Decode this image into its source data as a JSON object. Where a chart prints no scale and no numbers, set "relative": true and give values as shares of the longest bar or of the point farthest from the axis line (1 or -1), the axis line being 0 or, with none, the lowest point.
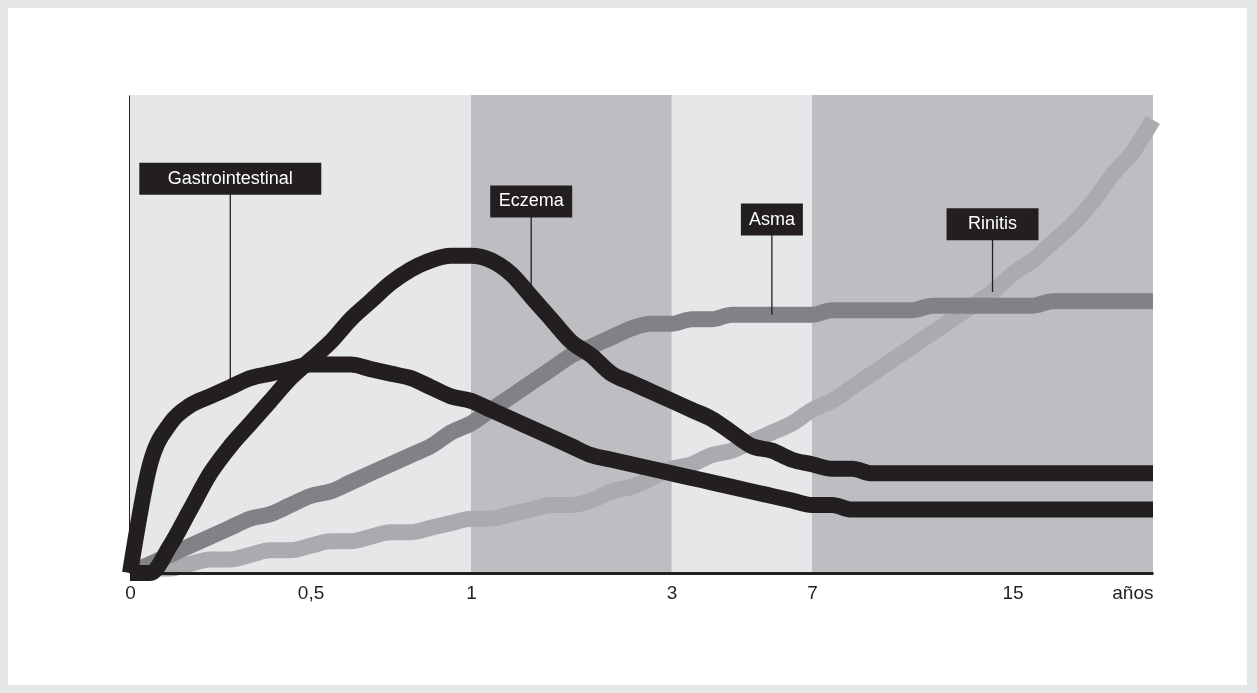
{
  "chart_data": {
    "type": "line",
    "relative": true,
    "xlabel": "años",
    "categories": [
      "0",
      null,
      null,
      null,
      null,
      null,
      null,
      null,
      null,
      "0,5",
      null,
      null,
      null,
      null,
      null,
      null,
      null,
      "1",
      null,
      null,
      null,
      null,
      null,
      null,
      null,
      null,
      null,
      "3",
      null,
      null,
      null,
      null,
      null,
      null,
      "7",
      null,
      null,
      null,
      null,
      null,
      null,
      null,
      null,
      null,
      "15",
      null,
      null,
      null,
      null,
      null,
      null,
      null
    ],
    "bands": [
      {
        "axis": "x",
        "from": "0",
        "to": "1",
        "color": "#e6e7e8"
      },
      {
        "axis": "x",
        "from": "3",
        "to": "7",
        "color": "#e6e7e8"
      }
    ],
    "series": [
      {
        "name": "Gastrointestinal",
        "color": "#231f20",
        "values": [
          0,
          0.24,
          0.33,
          0.37,
          0.39,
          0.41,
          0.43,
          0.44,
          0.45,
          0.46,
          0.46,
          0.46,
          0.45,
          0.44,
          0.43,
          0.41,
          0.39,
          0.38,
          0.36,
          0.34,
          0.32,
          0.3,
          0.28,
          0.26,
          0.25,
          0.24,
          0.23,
          0.22,
          0.21,
          0.2,
          0.19,
          0.18,
          0.17,
          0.16,
          0.15,
          0.15,
          0.14,
          0.14,
          0.14,
          0.14,
          0.14,
          0.14,
          0.14,
          0.14,
          0.14,
          0.14,
          0.14,
          0.14,
          0.14,
          0.14,
          0.14,
          0.14
        ]
      },
      {
        "name": "Eczema",
        "color": "#231f20",
        "values": [
          0,
          0,
          0.06,
          0.14,
          0.22,
          0.28,
          0.33,
          0.38,
          0.43,
          0.47,
          0.51,
          0.56,
          0.6,
          0.64,
          0.67,
          0.69,
          0.7,
          0.7,
          0.69,
          0.66,
          0.61,
          0.56,
          0.51,
          0.48,
          0.44,
          0.42,
          0.4,
          0.38,
          0.36,
          0.34,
          0.31,
          0.28,
          0.27,
          0.25,
          0.24,
          0.23,
          0.23,
          0.22,
          0.22,
          0.22,
          0.22,
          0.22,
          0.22,
          0.22,
          0.22,
          0.22,
          0.22,
          0.22,
          0.22,
          0.22,
          0.22,
          0.22
        ]
      },
      {
        "name": "Asma",
        "color": "#808285",
        "values": [
          0,
          0.02,
          0.04,
          0.06,
          0.08,
          0.1,
          0.12,
          0.13,
          0.15,
          0.17,
          0.18,
          0.2,
          0.22,
          0.24,
          0.26,
          0.28,
          0.31,
          0.33,
          0.36,
          0.39,
          0.42,
          0.45,
          0.48,
          0.5,
          0.52,
          0.54,
          0.55,
          0.55,
          0.56,
          0.56,
          0.57,
          0.57,
          0.57,
          0.57,
          0.57,
          0.58,
          0.58,
          0.58,
          0.58,
          0.58,
          0.59,
          0.59,
          0.59,
          0.59,
          0.59,
          0.59,
          0.6,
          0.6,
          0.6,
          0.6,
          0.6,
          0.6
        ]
      },
      {
        "name": "Rinitis",
        "color": "#a9abae",
        "values": [
          0,
          0.01,
          0.01,
          0.02,
          0.03,
          0.03,
          0.04,
          0.05,
          0.05,
          0.06,
          0.07,
          0.07,
          0.08,
          0.09,
          0.09,
          0.1,
          0.11,
          0.12,
          0.12,
          0.13,
          0.14,
          0.15,
          0.15,
          0.16,
          0.18,
          0.19,
          0.21,
          0.23,
          0.24,
          0.26,
          0.27,
          0.29,
          0.31,
          0.33,
          0.36,
          0.38,
          0.41,
          0.44,
          0.47,
          0.5,
          0.53,
          0.56,
          0.59,
          0.62,
          0.66,
          0.69,
          0.73,
          0.77,
          0.82,
          0.88,
          0.93,
          1
        ]
      }
    ]
  }
}
